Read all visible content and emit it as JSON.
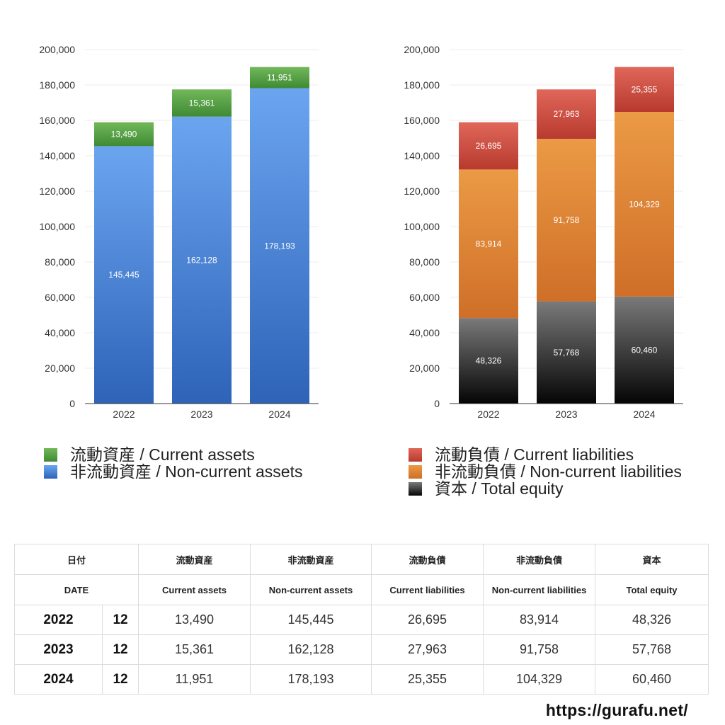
{
  "chart_data": [
    {
      "type": "bar",
      "stacked": true,
      "categories": [
        "2022",
        "2023",
        "2024"
      ],
      "series": [
        {
          "name": "非流動資産 / Non-current assets",
          "values": [
            145445,
            162128,
            178193
          ],
          "color_top": "#6ba5f0",
          "color_bottom": "#2e63b8"
        },
        {
          "name": "流動資産 / Current assets",
          "values": [
            13490,
            15361,
            11951
          ],
          "color_top": "#72b85a",
          "color_bottom": "#3f8a34"
        }
      ],
      "ylim": [
        0,
        200000
      ],
      "yticks": [
        "0",
        "20,000",
        "40,000",
        "60,000",
        "80,000",
        "100,000",
        "120,000",
        "140,000",
        "160,000",
        "180,000",
        "200,000"
      ],
      "grid": true,
      "legend_position": "bottom"
    },
    {
      "type": "bar",
      "stacked": true,
      "categories": [
        "2022",
        "2023",
        "2024"
      ],
      "series": [
        {
          "name": "資本 / Total equity",
          "values": [
            48326,
            57768,
            60460
          ],
          "color_top": "#7a7a7a",
          "color_bottom": "#050505"
        },
        {
          "name": "非流動負債 / Non-current liabilities",
          "values": [
            83914,
            91758,
            104329
          ],
          "color_top": "#eb9a45",
          "color_bottom": "#cf6f28"
        },
        {
          "name": "流動負債 / Current liabilities",
          "values": [
            26695,
            27963,
            25355
          ],
          "color_top": "#e0675a",
          "color_bottom": "#b83a2e"
        }
      ],
      "ylim": [
        0,
        200000
      ],
      "yticks": [
        "0",
        "20,000",
        "40,000",
        "60,000",
        "80,000",
        "100,000",
        "120,000",
        "140,000",
        "160,000",
        "180,000",
        "200,000"
      ],
      "grid": true,
      "legend_position": "bottom"
    }
  ],
  "legend_left": [
    {
      "label": "流動資産 / Current assets",
      "color": "#5aa845"
    },
    {
      "label": "非流動資産 / Non-current assets",
      "color": "#4a86d8"
    }
  ],
  "legend_right": [
    {
      "label": "流動負債 / Current liabilities",
      "color": "#d24a3d"
    },
    {
      "label": "非流動負債 / Non-current liabilities",
      "color": "#e0843a"
    },
    {
      "label": "資本 / Total equity",
      "color": "#2a2a2a"
    }
  ],
  "table": {
    "header_jp": [
      "日付",
      "流動資産",
      "非流動資産",
      "流動負債",
      "非流動負債",
      "資本"
    ],
    "header_en": [
      "DATE",
      "Current assets",
      "Non-current assets",
      "Current liabilities",
      "Non-current liabilities",
      "Total equity"
    ],
    "rows": [
      {
        "year": "2022",
        "month": "12",
        "cells": [
          "13,490",
          "145,445",
          "26,695",
          "83,914",
          "48,326"
        ]
      },
      {
        "year": "2023",
        "month": "12",
        "cells": [
          "15,361",
          "162,128",
          "27,963",
          "91,758",
          "57,768"
        ]
      },
      {
        "year": "2024",
        "month": "12",
        "cells": [
          "11,951",
          "178,193",
          "25,355",
          "104,329",
          "60,460"
        ]
      }
    ]
  },
  "site": "https://gurafu.net/"
}
